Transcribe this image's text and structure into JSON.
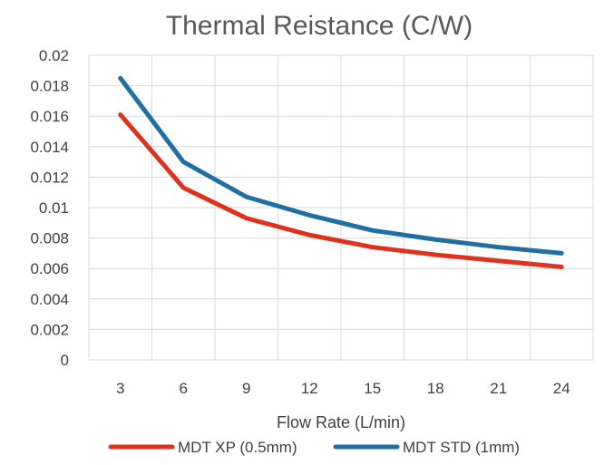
{
  "chart_data": {
    "type": "line",
    "title": "Thermal Reistance (C/W)",
    "xlabel": "Flow Rate (L/min)",
    "ylabel": "",
    "x": [
      3,
      6,
      9,
      12,
      15,
      18,
      21,
      24
    ],
    "xlim": [
      1.5,
      25.5
    ],
    "ylim": [
      0,
      0.02
    ],
    "yticks": [
      0,
      0.002,
      0.004,
      0.006,
      0.008,
      0.01,
      0.012,
      0.014,
      0.016,
      0.018,
      0.02
    ],
    "ytick_labels": [
      "0",
      "0.002",
      "0.004",
      "0.006",
      "0.008",
      "0.01",
      "0.012",
      "0.014",
      "0.016",
      "0.018",
      "0.02"
    ],
    "xtick_labels": [
      "3",
      "6",
      "9",
      "12",
      "15",
      "18",
      "21",
      "24"
    ],
    "grid": true,
    "legend_position": "bottom",
    "series": [
      {
        "name": "MDT XP (0.5mm)",
        "color": "#E0301E",
        "values": [
          0.0161,
          0.0113,
          0.0093,
          0.0082,
          0.0074,
          0.0069,
          0.0065,
          0.0061
        ]
      },
      {
        "name": "MDT STD (1mm)",
        "color": "#1F6FA3",
        "values": [
          0.0185,
          0.013,
          0.0107,
          0.0095,
          0.0085,
          0.0079,
          0.0074,
          0.007
        ]
      }
    ]
  }
}
